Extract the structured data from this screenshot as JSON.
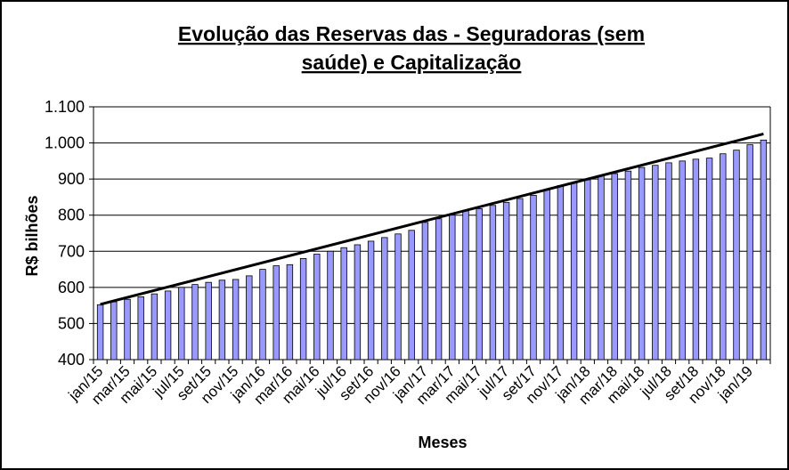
{
  "chart_data": {
    "type": "bar",
    "title": [
      "Evolução das Reservas das - Seguradoras (sem",
      "saúde) e Capitalização"
    ],
    "xlabel": "Meses",
    "ylabel": "R$ bilhões",
    "categories": [
      "jan/15",
      null,
      "mar/15",
      null,
      "mai/15",
      null,
      "jul/15",
      null,
      "set/15",
      null,
      "nov/15",
      null,
      "jan/16",
      null,
      "mar/16",
      null,
      "mai/16",
      null,
      "jul/16",
      null,
      "set/16",
      null,
      "nov/16",
      null,
      "jan/17",
      null,
      "mar/17",
      null,
      "mai/17",
      null,
      "jul/17",
      null,
      "set/17",
      null,
      "nov/17",
      null,
      "jan/18",
      null,
      "mar/18",
      null,
      "mai/18",
      null,
      "jul/18",
      null,
      "set/18",
      null,
      "nov/18",
      null,
      "jan/19",
      null
    ],
    "values": [
      552,
      560,
      567,
      574,
      582,
      590,
      600,
      608,
      614,
      620,
      622,
      632,
      650,
      660,
      663,
      680,
      692,
      700,
      710,
      718,
      728,
      738,
      748,
      758,
      780,
      790,
      800,
      812,
      818,
      827,
      835,
      846,
      855,
      870,
      882,
      890,
      898,
      910,
      915,
      922,
      932,
      938,
      945,
      950,
      955,
      958,
      970,
      980,
      995,
      1008
    ],
    "color": "#9999ff",
    "trendline": {
      "color": "#000000",
      "start": 553,
      "end": 1025
    },
    "ylim": [
      400,
      1100
    ],
    "yticks": [
      400,
      500,
      600,
      700,
      800,
      900,
      {
        "value": 1000,
        "label": "1.000"
      },
      {
        "value": 1100,
        "label": "1.100"
      }
    ],
    "grid": true
  }
}
